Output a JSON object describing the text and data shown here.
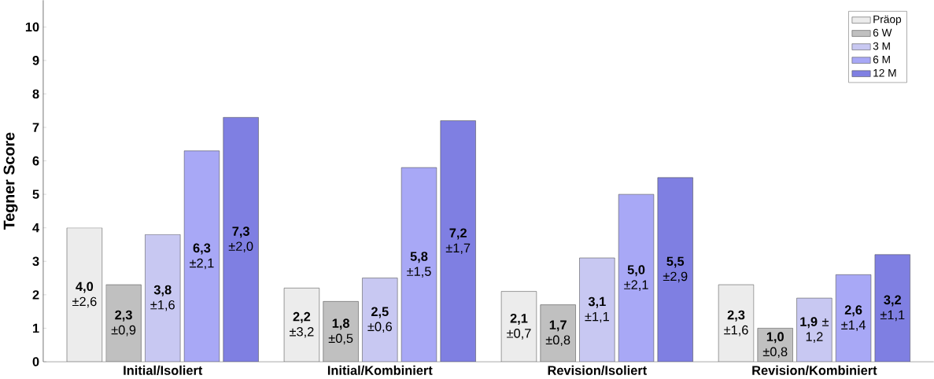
{
  "chart_data": {
    "type": "bar",
    "ylabel": "Tegner Score",
    "categories": [
      "Initial/Isoliert",
      "Initial/Kombiniert",
      "Revision/Isoliert",
      "Revision/Kombiniert"
    ],
    "series": [
      {
        "name": "Präop",
        "color": "#ececec",
        "values": [
          4.0,
          2.2,
          2.1,
          2.3
        ],
        "value_labels": [
          "**4,0** ±2,6",
          "**2,2** ±3,2",
          "**2,1** ±0,7",
          "**2,3** ±1,6"
        ]
      },
      {
        "name": "6 W",
        "color": "#c0c0c0",
        "values": [
          2.3,
          1.8,
          1.7,
          1.0
        ],
        "value_labels": [
          "**2,3** ±0,9",
          "**1,8** ±0,5",
          "**1,7** ±0,8",
          "**1,0** ±0,8"
        ]
      },
      {
        "name": "3 M",
        "color": "#c8c8f2",
        "values": [
          3.8,
          2.5,
          3.1,
          1.9
        ],
        "value_labels": [
          "**3,8** ±1,6",
          "**2,5** ±0,6",
          "**3,1** ±1,1",
          "**1,9** ± 1,2"
        ]
      },
      {
        "name": "6 M",
        "color": "#a8a8f6",
        "values": [
          6.3,
          5.8,
          5.0,
          2.6
        ],
        "value_labels": [
          "**6,3** ±2,1",
          "**5,8** ±1,5",
          "**5,0** ±2,1",
          "**2,6** ±1,4"
        ]
      },
      {
        "name": "12 M",
        "color": "#7f7fe2",
        "values": [
          7.3,
          7.2,
          5.5,
          3.2
        ],
        "value_labels": [
          "**7,3** ±2,0",
          "**7,2** ±1,7",
          "**5,5** ±2,9",
          "**3,2** ±1,1"
        ]
      }
    ],
    "ylim": [
      0,
      10.8
    ],
    "yticks": [
      0,
      1,
      2,
      3,
      4,
      5,
      6,
      7,
      8,
      9,
      10
    ],
    "grid": false,
    "legend": "top right"
  }
}
